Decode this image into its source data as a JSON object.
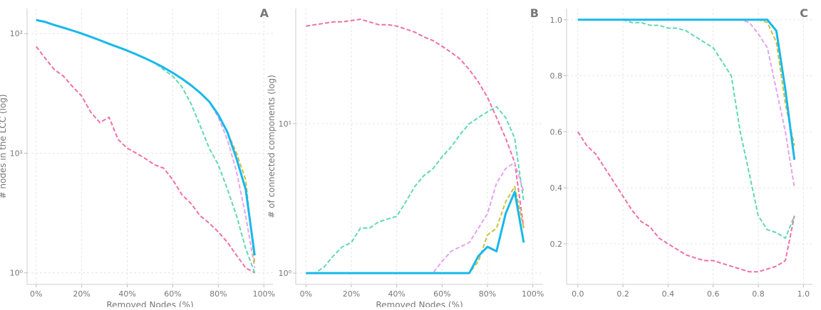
{
  "chart_data": [
    {
      "type": "line",
      "panel_label": "A",
      "x_label": "Removed Nodes (%)",
      "y_label": "# nodes in the LCC (log)",
      "ylog": true,
      "grid": true,
      "x": [
        0,
        4,
        8,
        12,
        16,
        20,
        24,
        28,
        32,
        36,
        40,
        44,
        48,
        52,
        56,
        60,
        64,
        68,
        72,
        76,
        80,
        84,
        88,
        92,
        96
      ],
      "xlim": [
        -4,
        104
      ],
      "ylim": [
        0.8,
        162
      ],
      "xticks": [
        {
          "value": 0,
          "label": "0%"
        },
        {
          "value": 20,
          "label": "20%"
        },
        {
          "value": 40,
          "label": "40%"
        },
        {
          "value": 60,
          "label": "60%"
        },
        {
          "value": 80,
          "label": "80%"
        },
        {
          "value": 100,
          "label": "100%"
        }
      ],
      "yticks": [
        {
          "value": 1,
          "label": "10⁰"
        },
        {
          "value": 10,
          "label": "10¹"
        },
        {
          "value": 100,
          "label": "10²"
        }
      ],
      "series": [
        {
          "color": "#f06fa8",
          "style": "dashed",
          "values": [
            78,
            62,
            50,
            44,
            36,
            30,
            22,
            18,
            20,
            13,
            11,
            10,
            9,
            8,
            7.5,
            6,
            4.5,
            3.8,
            3,
            2.6,
            2.2,
            1.8,
            1.4,
            1.1,
            1
          ]
        },
        {
          "color": "#5fd9b0",
          "style": "dashed",
          "values": [
            130,
            125,
            118,
            112,
            106,
            100,
            94,
            88,
            82,
            77,
            72,
            67,
            62,
            57,
            50,
            44,
            36,
            26,
            17,
            11,
            8,
            5,
            3,
            1.6,
            1
          ]
        },
        {
          "color": "#e6a3ec",
          "style": "dashed",
          "values": [
            130,
            125,
            118,
            112,
            106,
            100,
            94,
            88,
            82,
            77,
            72,
            67,
            62,
            57,
            52,
            47,
            42,
            37,
            32,
            27,
            20,
            13,
            7,
            3,
            1.1
          ]
        },
        {
          "color": "#c9c13a",
          "style": "dashed",
          "values": [
            130,
            125,
            118,
            112,
            106,
            100,
            94,
            88,
            82,
            77,
            72,
            67,
            62,
            57,
            52,
            47,
            42,
            37,
            32,
            27,
            21,
            15,
            10,
            6,
            1.2
          ]
        },
        {
          "color": "#18b8ec",
          "style": "solid",
          "values": [
            130,
            125,
            118,
            112,
            106,
            100,
            94,
            88,
            82,
            77,
            72,
            67,
            62,
            57,
            52,
            47,
            42,
            37,
            32,
            27,
            21,
            15,
            9,
            5,
            1.4
          ]
        }
      ]
    },
    {
      "type": "line",
      "panel_label": "B",
      "x_label": "Removed Nodes (%)",
      "y_label": "# of connected components (log)",
      "ylog": true,
      "grid": true,
      "x": [
        0,
        4,
        8,
        12,
        16,
        20,
        24,
        28,
        32,
        36,
        40,
        44,
        48,
        52,
        56,
        60,
        64,
        68,
        72,
        76,
        80,
        84,
        88,
        92,
        96
      ],
      "xlim": [
        -4.5,
        104.5
      ],
      "ylim": [
        0.84,
        59
      ],
      "xticks": [
        {
          "value": 0,
          "label": "0%"
        },
        {
          "value": 20,
          "label": "20%"
        },
        {
          "value": 40,
          "label": "40%"
        },
        {
          "value": 60,
          "label": "60%"
        },
        {
          "value": 80,
          "label": "80%"
        },
        {
          "value": 100,
          "label": "100%"
        }
      ],
      "yticks": [
        {
          "value": 1,
          "label": "10⁰"
        },
        {
          "value": 10,
          "label": "10¹"
        }
      ],
      "series": [
        {
          "color": "#f06fa8",
          "style": "dashed",
          "values": [
            45,
            46,
            47,
            48,
            48,
            49,
            50,
            48,
            46,
            46,
            45,
            43,
            41,
            38,
            36,
            33,
            30,
            27,
            23,
            19,
            15,
            11,
            8,
            5.5,
            2
          ]
        },
        {
          "color": "#5fd9b0",
          "style": "dashed",
          "values": [
            1,
            1,
            1.1,
            1.3,
            1.5,
            1.6,
            2,
            2,
            2.2,
            2.3,
            2.4,
            3,
            3.8,
            4.5,
            5,
            6,
            7,
            8.5,
            10,
            11,
            12,
            13,
            11,
            8,
            3
          ]
        },
        {
          "color": "#e6a3ec",
          "style": "dashed",
          "values": [
            1,
            1,
            1,
            1,
            1,
            1,
            1,
            1,
            1,
            1,
            1,
            1,
            1,
            1,
            1,
            1.2,
            1.4,
            1.5,
            1.6,
            2,
            2.5,
            4,
            5,
            5.5,
            3.5
          ]
        },
        {
          "color": "#c9c13a",
          "style": "dashed",
          "values": [
            1,
            1,
            1,
            1,
            1,
            1,
            1,
            1,
            1,
            1,
            1,
            1,
            1,
            1,
            1,
            1,
            1,
            1,
            1,
            1.2,
            1.8,
            2,
            3,
            3.8,
            2
          ]
        },
        {
          "color": "#18b8ec",
          "style": "solid",
          "values": [
            1,
            1,
            1,
            1,
            1,
            1,
            1,
            1,
            1,
            1,
            1,
            1,
            1,
            1,
            1,
            1,
            1,
            1,
            1,
            1.3,
            1.5,
            1.4,
            2.5,
            3.5,
            1.6
          ]
        }
      ]
    },
    {
      "type": "line",
      "panel_label": "C",
      "ylog": false,
      "grid": true,
      "x": [
        0,
        0.04,
        0.08,
        0.12,
        0.16,
        0.2,
        0.24,
        0.28,
        0.32,
        0.36,
        0.4,
        0.44,
        0.48,
        0.52,
        0.56,
        0.6,
        0.64,
        0.68,
        0.72,
        0.76,
        0.8,
        0.84,
        0.88,
        0.92,
        0.96
      ],
      "xlim": [
        -0.05,
        1.04
      ],
      "ylim": [
        0.055,
        1.04
      ],
      "xticks": [
        {
          "value": 0,
          "label": "0.0"
        },
        0.2,
        0.4,
        0.6,
        0.8,
        {
          "value": 1,
          "label": "1.0"
        }
      ],
      "yticks": [
        0.2,
        0.4,
        0.6,
        0.8,
        {
          "value": 1,
          "label": "1.0"
        }
      ],
      "series": [
        {
          "color": "#f06fa8",
          "style": "dashed",
          "values": [
            0.6,
            0.55,
            0.52,
            0.47,
            0.42,
            0.37,
            0.32,
            0.28,
            0.26,
            0.22,
            0.2,
            0.18,
            0.16,
            0.15,
            0.14,
            0.14,
            0.13,
            0.12,
            0.11,
            0.1,
            0.1,
            0.11,
            0.12,
            0.14,
            0.3
          ]
        },
        {
          "color": "#5fd9b0",
          "style": "dashed",
          "values": [
            1,
            1,
            1,
            1,
            1,
            1,
            0.99,
            0.99,
            0.98,
            0.98,
            0.97,
            0.97,
            0.96,
            0.94,
            0.92,
            0.9,
            0.85,
            0.8,
            0.6,
            0.45,
            0.3,
            0.25,
            0.24,
            0.22,
            0.3
          ]
        },
        {
          "color": "#e6a3ec",
          "style": "dashed",
          "values": [
            1,
            1,
            1,
            1,
            1,
            1,
            1,
            1,
            1,
            1,
            1,
            1,
            1,
            1,
            1,
            1,
            1,
            1,
            1,
            0.99,
            0.95,
            0.9,
            0.75,
            0.6,
            0.4
          ]
        },
        {
          "color": "#c9c13a",
          "style": "dashed",
          "values": [
            1,
            1,
            1,
            1,
            1,
            1,
            1,
            1,
            1,
            1,
            1,
            1,
            1,
            1,
            1,
            1,
            1,
            1,
            1,
            1,
            1,
            0.99,
            0.92,
            0.7,
            0.55
          ]
        },
        {
          "color": "#18b8ec",
          "style": "solid",
          "values": [
            1,
            1,
            1,
            1,
            1,
            1,
            1,
            1,
            1,
            1,
            1,
            1,
            1,
            1,
            1,
            1,
            1,
            1,
            1,
            1,
            1,
            1,
            0.96,
            0.75,
            0.5
          ]
        }
      ]
    }
  ]
}
